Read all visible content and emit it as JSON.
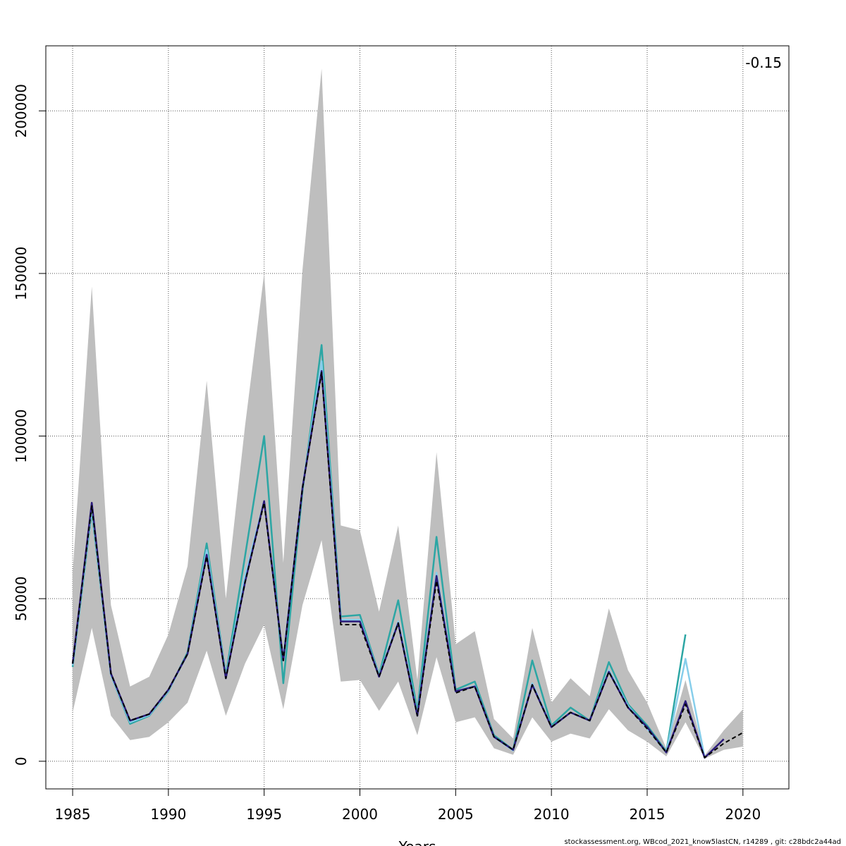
{
  "chart_data": {
    "type": "line",
    "title": "",
    "xlabel": "Years",
    "ylabel": "",
    "xlim": [
      1983.6,
      2022.4
    ],
    "ylim": [
      -8500,
      220000
    ],
    "x_ticks": [
      1985,
      1990,
      1995,
      2000,
      2005,
      2010,
      2015,
      2020
    ],
    "y_ticks": [
      0,
      50000,
      100000,
      150000,
      200000
    ],
    "grid": true,
    "annotation": "-0.15",
    "footer": "stockassessment.org, WBcod_2021_know5lastCN, r14289 , git: c28bdc2a44ad",
    "confidence_band": {
      "x": [
        1985,
        1986,
        1987,
        1988,
        1989,
        1990,
        1991,
        1992,
        1993,
        1994,
        1995,
        1996,
        1997,
        1998,
        1999,
        2000,
        2001,
        2002,
        2003,
        2004,
        2005,
        2006,
        2007,
        2008,
        2009,
        2010,
        2011,
        2012,
        2013,
        2014,
        2015,
        2016,
        2017,
        2018,
        2019,
        2020
      ],
      "lower": [
        15000,
        41000,
        14000,
        6500,
        7500,
        12000,
        18000,
        34000,
        14000,
        30000,
        42000,
        16000,
        48000,
        68000,
        24500,
        25000,
        15500,
        24500,
        8000,
        32000,
        12000,
        13500,
        4000,
        2000,
        13500,
        6000,
        8500,
        7000,
        16000,
        9500,
        6000,
        1500,
        12000,
        800,
        3500,
        4500
      ],
      "upper": [
        58000,
        146000,
        48000,
        23000,
        26000,
        39000,
        60000,
        117000,
        50000,
        103000,
        150000,
        61000,
        151000,
        213000,
        72500,
        71000,
        46000,
        72500,
        25000,
        95000,
        36000,
        40000,
        13000,
        7000,
        41000,
        18000,
        25500,
        20000,
        47000,
        28000,
        18000,
        4000,
        25000,
        1800,
        9500,
        16000
      ],
      "color": "#bebebe"
    },
    "series": [
      {
        "color": "#2ca6a4",
        "style": "solid",
        "x": [
          1985,
          1986,
          1987,
          1988,
          1989,
          1990,
          1991,
          1992,
          1993,
          1994,
          1995,
          1996,
          1997,
          1998,
          1999,
          2000,
          2001,
          2002,
          2003,
          2004,
          2005,
          2006,
          2007,
          2008,
          2009,
          2010,
          2011,
          2012,
          2013,
          2014,
          2015,
          2016,
          2017
        ],
        "values": [
          29000,
          77000,
          26500,
          11500,
          14000,
          21500,
          33500,
          67000,
          26500,
          63000,
          100000,
          24000,
          83000,
          128000,
          44500,
          45000,
          26500,
          49500,
          15500,
          69000,
          22000,
          24500,
          8000,
          3500,
          31000,
          11000,
          16500,
          12500,
          30500,
          17500,
          11000,
          3000,
          39000
        ]
      },
      {
        "color": "#87ceeb",
        "style": "solid",
        "x": [
          1985,
          1986,
          1987,
          1988,
          1989,
          1990,
          1991,
          1992,
          1993,
          1994,
          1995,
          1996,
          1997,
          1998,
          1999,
          2000,
          2001,
          2002,
          2003,
          2004,
          2005,
          2006,
          2007,
          2008,
          2009,
          2010,
          2011,
          2012,
          2013,
          2014,
          2015,
          2016,
          2017,
          2018
        ],
        "values": [
          29500,
          78000,
          26500,
          12000,
          14200,
          21700,
          33000,
          65000,
          26000,
          57000,
          80000,
          31500,
          84000,
          123000,
          43500,
          43500,
          26300,
          43000,
          14500,
          58000,
          21500,
          23200,
          7500,
          3300,
          24000,
          10600,
          15000,
          12500,
          28000,
          17000,
          10000,
          2700,
          31500,
          1200
        ]
      },
      {
        "color": "#2a1a7a",
        "style": "solid",
        "x": [
          1985,
          1986,
          1987,
          1988,
          1989,
          1990,
          1991,
          1992,
          1993,
          1994,
          1995,
          1996,
          1997,
          1998,
          1999,
          2000,
          2001,
          2002,
          2003,
          2004,
          2005,
          2006,
          2007,
          2008,
          2009,
          2010,
          2011,
          2012,
          2013,
          2014,
          2015,
          2016,
          2017,
          2018,
          2019
        ],
        "values": [
          30000,
          79500,
          27000,
          12500,
          14500,
          22000,
          33000,
          63500,
          25500,
          55000,
          80000,
          31000,
          84000,
          120000,
          43000,
          43000,
          26000,
          42500,
          14000,
          57000,
          21500,
          23000,
          7500,
          3500,
          23500,
          10500,
          15000,
          12500,
          27500,
          16500,
          10500,
          2700,
          18500,
          1100,
          6800
        ]
      },
      {
        "color": "#000000",
        "style": "dashed",
        "x": [
          1985,
          1986,
          1987,
          1988,
          1989,
          1990,
          1991,
          1992,
          1993,
          1994,
          1995,
          1996,
          1997,
          1998,
          1999,
          2000,
          2001,
          2002,
          2003,
          2004,
          2005,
          2006,
          2007,
          2008,
          2009,
          2010,
          2011,
          2012,
          2013,
          2014,
          2015,
          2016,
          2017,
          2018,
          2019,
          2020
        ],
        "values": [
          30000,
          78500,
          27000,
          12500,
          14500,
          22000,
          33000,
          63000,
          25500,
          55000,
          79500,
          31000,
          84000,
          119500,
          42000,
          42000,
          26000,
          42500,
          14000,
          55500,
          21000,
          23000,
          7500,
          3500,
          23500,
          10500,
          15000,
          12500,
          27500,
          16500,
          10000,
          2700,
          17500,
          1100,
          5500,
          8800
        ]
      }
    ]
  }
}
